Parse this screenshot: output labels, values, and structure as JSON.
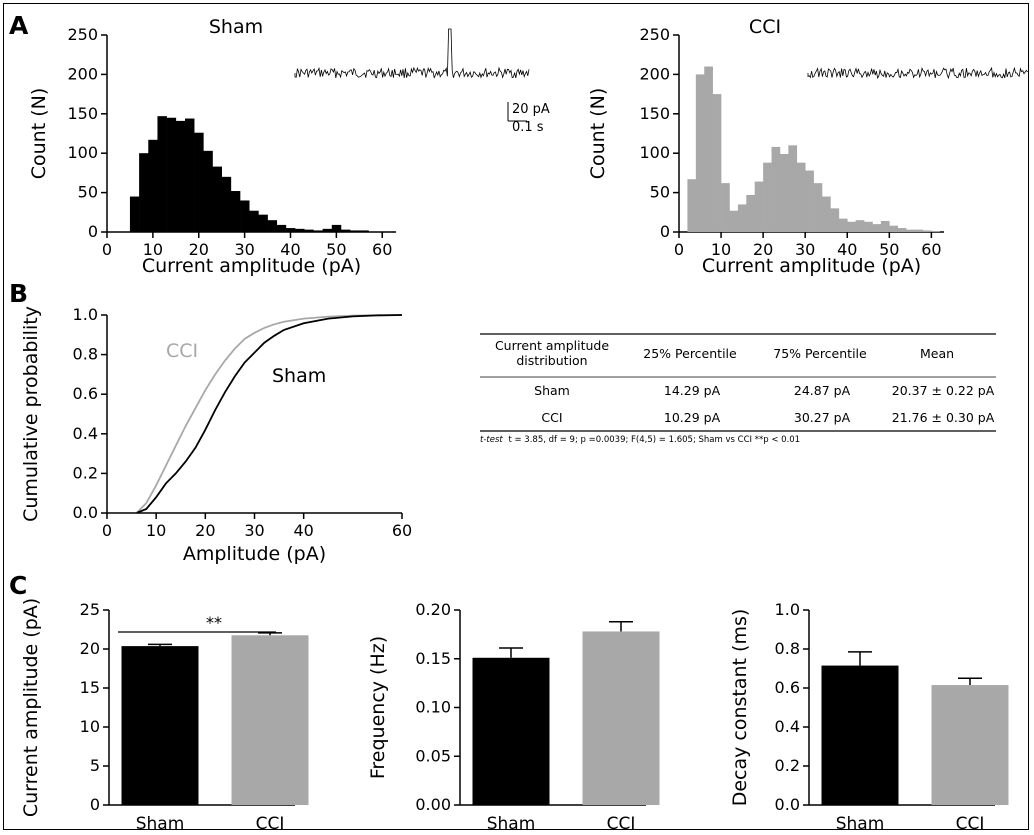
{
  "panels": {
    "a": "A",
    "b": "B",
    "c": "C"
  },
  "colors": {
    "sham": "#000000",
    "cci": "#a8a8a8",
    "axis": "#000000"
  },
  "scale_bar": {
    "amplitude": "20 pA",
    "time": "0.1 s"
  },
  "chart_data": [
    {
      "id": "hist_sham",
      "type": "bar",
      "title": "Sham",
      "xlabel": "Current amplitude (pA)",
      "ylabel": "Count (N)",
      "xlim": [
        0,
        63
      ],
      "ylim": [
        0,
        250
      ],
      "xticks": [
        0,
        10,
        20,
        30,
        40,
        50,
        60
      ],
      "yticks": [
        0,
        50,
        100,
        150,
        200,
        250
      ],
      "bin_start": 5,
      "bin_width": 2,
      "values": [
        45,
        100,
        117,
        147,
        145,
        141,
        144,
        126,
        103,
        83,
        70,
        52,
        40,
        27,
        22,
        15,
        9,
        5,
        4,
        3,
        2,
        4,
        9,
        3,
        2,
        2
      ],
      "color": "#000000"
    },
    {
      "id": "hist_cci",
      "type": "bar",
      "title": "CCI",
      "xlabel": "Current amplitude (pA)",
      "ylabel": "Count (N)",
      "xlim": [
        0,
        63
      ],
      "ylim": [
        0,
        250
      ],
      "xticks": [
        0,
        10,
        20,
        30,
        40,
        50,
        60
      ],
      "yticks": [
        0,
        50,
        100,
        150,
        200,
        250
      ],
      "bin_start": 2,
      "bin_width": 2,
      "values": [
        67,
        200,
        210,
        175,
        62,
        27,
        35,
        47,
        64,
        88,
        108,
        99,
        110,
        88,
        78,
        62,
        45,
        30,
        17,
        13,
        15,
        13,
        10,
        14,
        8,
        5,
        3,
        3,
        2,
        1
      ],
      "color": "#a8a8a8"
    },
    {
      "id": "cumulative",
      "type": "line",
      "xlabel": "Amplitude (pA)",
      "ylabel": "Cumulative probability",
      "xlim": [
        0,
        60
      ],
      "ylim": [
        0,
        1
      ],
      "xticks": [
        0,
        10,
        20,
        30,
        40,
        60
      ],
      "yticks": [
        "0.0",
        "0.2",
        "0.4",
        "0.6",
        "0.8",
        "1.0"
      ],
      "series": [
        {
          "name": "CCI",
          "color": "#a8a8a8",
          "x": [
            6,
            8,
            10,
            12,
            14,
            16,
            18,
            20,
            22,
            24,
            26,
            28,
            30,
            32,
            34,
            36,
            40,
            45,
            50,
            55,
            60
          ],
          "y": [
            0,
            0.05,
            0.14,
            0.24,
            0.34,
            0.44,
            0.53,
            0.62,
            0.7,
            0.77,
            0.83,
            0.88,
            0.91,
            0.935,
            0.953,
            0.966,
            0.982,
            0.992,
            0.997,
            0.999,
            1.0
          ]
        },
        {
          "name": "Sham",
          "color": "#000000",
          "x": [
            6,
            8,
            10,
            12,
            14,
            16,
            18,
            20,
            22,
            24,
            26,
            28,
            30,
            32,
            34,
            36,
            40,
            45,
            50,
            55,
            60
          ],
          "y": [
            0,
            0.02,
            0.08,
            0.15,
            0.2,
            0.26,
            0.33,
            0.42,
            0.52,
            0.61,
            0.69,
            0.76,
            0.81,
            0.86,
            0.895,
            0.925,
            0.958,
            0.982,
            0.993,
            0.998,
            1.0
          ]
        }
      ]
    },
    {
      "id": "bar_amplitude",
      "type": "bar",
      "ylabel": "Current amplitude (pA)",
      "categories": [
        "Sham",
        "CCI"
      ],
      "values": [
        20.37,
        21.76
      ],
      "errors": [
        0.22,
        0.3
      ],
      "ylim": [
        0,
        25
      ],
      "yticks": [
        0,
        5,
        10,
        15,
        20,
        25
      ],
      "colors": [
        "#000000",
        "#a8a8a8"
      ],
      "significance": "**"
    },
    {
      "id": "bar_frequency",
      "type": "bar",
      "ylabel": "Frequency (Hz)",
      "categories": [
        "Sham",
        "CCI"
      ],
      "values": [
        0.151,
        0.178
      ],
      "errors": [
        0.01,
        0.01
      ],
      "ylim": [
        0,
        0.2
      ],
      "yticks": [
        "0.00",
        "0.05",
        "0.10",
        "0.15",
        "0.20"
      ],
      "colors": [
        "#000000",
        "#a8a8a8"
      ]
    },
    {
      "id": "bar_decay",
      "type": "bar",
      "ylabel": "Decay constant (ms)",
      "categories": [
        "Sham",
        "CCI"
      ],
      "values": [
        0.715,
        0.615
      ],
      "errors": [
        0.07,
        0.035
      ],
      "ylim": [
        0,
        1
      ],
      "yticks": [
        "0.0",
        "0.2",
        "0.4",
        "0.6",
        "0.8",
        "1.0"
      ],
      "colors": [
        "#000000",
        "#a8a8a8"
      ]
    }
  ],
  "table": {
    "headers": [
      "Current amplitude distribution",
      "25% Percentile",
      "75% Percentile",
      "Mean"
    ],
    "rows": [
      [
        "Sham",
        "14.29 pA",
        "24.87 pA",
        "20.37 ± 0.22 pA"
      ],
      [
        "CCI",
        "10.29 pA",
        "30.27 pA",
        "21.76 ± 0.30 pA"
      ]
    ],
    "footnote_italic": "t-test",
    "footnote": "t = 3.85, df = 9; p =0.0039; F(4,5) = 1.605; Sham vs CCI **p < 0.01"
  }
}
